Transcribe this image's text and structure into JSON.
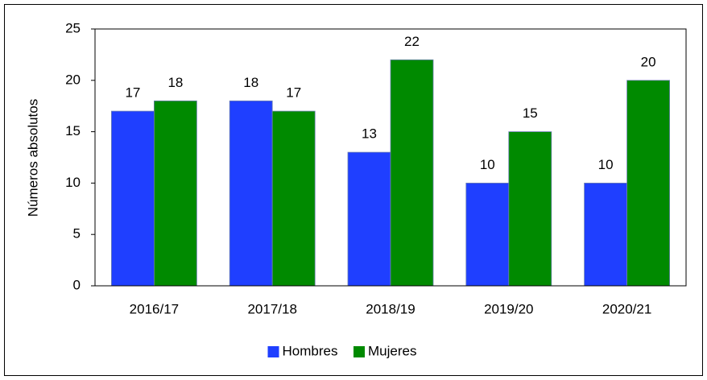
{
  "chart_data": {
    "type": "bar",
    "y_label": "Números absolutos",
    "categories": [
      "2016/17",
      "2017/18",
      "2018/19",
      "2019/20",
      "2020/21"
    ],
    "series": [
      {
        "name": "Hombres",
        "color": "#1f3fff",
        "values": [
          17,
          18,
          13,
          10,
          10
        ]
      },
      {
        "name": "Mujeres",
        "color": "#008a00",
        "values": [
          18,
          17,
          22,
          15,
          20
        ]
      }
    ],
    "ylim": [
      0,
      25
    ],
    "yticks": [
      0,
      5,
      10,
      15,
      20,
      25
    ],
    "grid": false,
    "legend": "bottom"
  }
}
